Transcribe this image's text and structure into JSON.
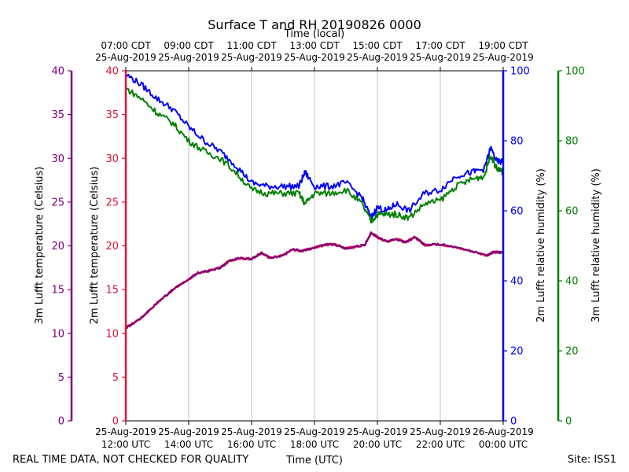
{
  "chart_data": {
    "type": "line",
    "title": "Surface T and RH 20190826 0000",
    "top_axis_title": "Time (local)",
    "xlabel": "Time (UTC)",
    "footer_left": "REAL TIME DATA, NOT CHECKED FOR QUALITY",
    "footer_right": "Site: ISS1",
    "xlim_hours_utc": [
      12,
      24
    ],
    "bottom_ticks": [
      {
        "h": 12,
        "l1": "25-Aug-2019",
        "l2": "12:00 UTC"
      },
      {
        "h": 14,
        "l1": "25-Aug-2019",
        "l2": "14:00 UTC"
      },
      {
        "h": 16,
        "l1": "25-Aug-2019",
        "l2": "16:00 UTC"
      },
      {
        "h": 18,
        "l1": "25-Aug-2019",
        "l2": "18:00 UTC"
      },
      {
        "h": 20,
        "l1": "25-Aug-2019",
        "l2": "20:00 UTC"
      },
      {
        "h": 22,
        "l1": "25-Aug-2019",
        "l2": "22:00 UTC"
      },
      {
        "h": 24,
        "l1": "26-Aug-2019",
        "l2": "00:00 UTC"
      }
    ],
    "top_ticks": [
      {
        "h": 12,
        "l1": "07:00 CDT",
        "l2": "25-Aug-2019"
      },
      {
        "h": 14,
        "l1": "09:00 CDT",
        "l2": "25-Aug-2019"
      },
      {
        "h": 16,
        "l1": "11:00 CDT",
        "l2": "25-Aug-2019"
      },
      {
        "h": 18,
        "l1": "13:00 CDT",
        "l2": "25-Aug-2019"
      },
      {
        "h": 20,
        "l1": "15:00 CDT",
        "l2": "25-Aug-2019"
      },
      {
        "h": 22,
        "l1": "17:00 CDT",
        "l2": "25-Aug-2019"
      },
      {
        "h": 24,
        "l1": "19:00 CDT",
        "l2": "25-Aug-2019"
      }
    ],
    "axes": {
      "t3m": {
        "label": "3m Lufft temperature (Celsius)",
        "color": "#800080",
        "range": [
          0,
          40
        ],
        "ticks": [
          0,
          5,
          10,
          15,
          20,
          25,
          30,
          35,
          40
        ]
      },
      "t2m": {
        "label": "2m Lufft temperature (Celsius)",
        "color": "#dc143c",
        "range": [
          0,
          40
        ],
        "ticks": [
          0,
          5,
          10,
          15,
          20,
          25,
          30,
          35,
          40
        ]
      },
      "rh2m": {
        "label": "2m Lufft relative humidity (%)",
        "color": "#0000ff",
        "range": [
          0,
          100
        ],
        "ticks": [
          0,
          20,
          40,
          60,
          80,
          100
        ]
      },
      "rh3m": {
        "label": "3m Lufft relative humidity (%)",
        "color": "#008000",
        "range": [
          0,
          100
        ],
        "ticks": [
          0,
          20,
          40,
          60,
          80,
          100
        ]
      }
    },
    "series": [
      {
        "name": "2m Lufft temperature",
        "axis": "t2m",
        "color": "#dc143c",
        "width": 2.5,
        "x": [
          12,
          12.5,
          13,
          13.5,
          14,
          14.3,
          14.6,
          15,
          15.3,
          15.6,
          16,
          16.3,
          16.6,
          17,
          17.3,
          17.6,
          18,
          18.3,
          18.6,
          19,
          19.3,
          19.6,
          19.8,
          20,
          20.3,
          20.6,
          20.9,
          21.2,
          21.5,
          22,
          22.5,
          23,
          23.5,
          23.7,
          24
        ],
        "y": [
          10.6,
          11.8,
          13.5,
          15.0,
          16.2,
          16.9,
          17.1,
          17.5,
          18.3,
          18.6,
          18.5,
          19.2,
          18.6,
          18.9,
          19.6,
          19.4,
          19.8,
          20.1,
          20.2,
          19.7,
          19.9,
          20.1,
          21.5,
          21.0,
          20.5,
          20.8,
          20.4,
          21.0,
          20.1,
          20.2,
          19.8,
          19.4,
          18.9,
          19.3,
          19.2
        ]
      },
      {
        "name": "3m Lufft temperature",
        "axis": "t3m",
        "color": "#800080",
        "width": 2,
        "x": [
          12,
          12.5,
          13,
          13.5,
          14,
          14.3,
          14.6,
          15,
          15.3,
          15.6,
          16,
          16.3,
          16.6,
          17,
          17.3,
          17.6,
          18,
          18.3,
          18.6,
          19,
          19.3,
          19.6,
          19.8,
          20,
          20.3,
          20.6,
          20.9,
          21.2,
          21.5,
          22,
          22.5,
          23,
          23.5,
          23.7,
          24
        ],
        "y": [
          10.6,
          11.8,
          13.5,
          15.0,
          16.2,
          16.9,
          17.1,
          17.5,
          18.3,
          18.6,
          18.5,
          19.2,
          18.6,
          18.9,
          19.6,
          19.4,
          19.8,
          20.1,
          20.2,
          19.7,
          19.9,
          20.1,
          21.5,
          21.0,
          20.5,
          20.8,
          20.4,
          21.0,
          20.1,
          20.2,
          19.8,
          19.4,
          18.9,
          19.3,
          19.2
        ]
      },
      {
        "name": "2m Lufft relative humidity",
        "axis": "rh2m",
        "color": "#0000ff",
        "width": 2,
        "x": [
          12,
          12.5,
          13,
          13.5,
          14,
          14.5,
          15,
          15.5,
          16,
          16.5,
          17,
          17.5,
          17.7,
          18,
          18.5,
          19,
          19.5,
          19.8,
          20,
          20.3,
          20.6,
          21,
          21.5,
          22,
          22.5,
          23,
          23.4,
          23.6,
          23.8,
          24
        ],
        "y": [
          99,
          96,
          92,
          89,
          84,
          80,
          77,
          73,
          68,
          67,
          67,
          67,
          71,
          67,
          67,
          68,
          64,
          58,
          61,
          60,
          62,
          60,
          65,
          66,
          70,
          71,
          72,
          78,
          74,
          74
        ]
      },
      {
        "name": "3m Lufft relative humidity",
        "axis": "rh3m",
        "color": "#008000",
        "width": 2,
        "x": [
          12,
          12.5,
          13,
          13.5,
          14,
          14.5,
          15,
          15.5,
          16,
          16.5,
          17,
          17.5,
          17.7,
          18,
          18.5,
          19,
          19.5,
          19.8,
          20,
          20.3,
          20.6,
          21,
          21.5,
          22,
          22.5,
          23,
          23.4,
          23.6,
          23.8,
          24
        ],
        "y": [
          95,
          92,
          88,
          85,
          80,
          77,
          75,
          71,
          66,
          65,
          65,
          65,
          62,
          65,
          65,
          66,
          62,
          57,
          59,
          59,
          59,
          58,
          62,
          63,
          67,
          69,
          70,
          76,
          72,
          71
        ]
      }
    ]
  }
}
